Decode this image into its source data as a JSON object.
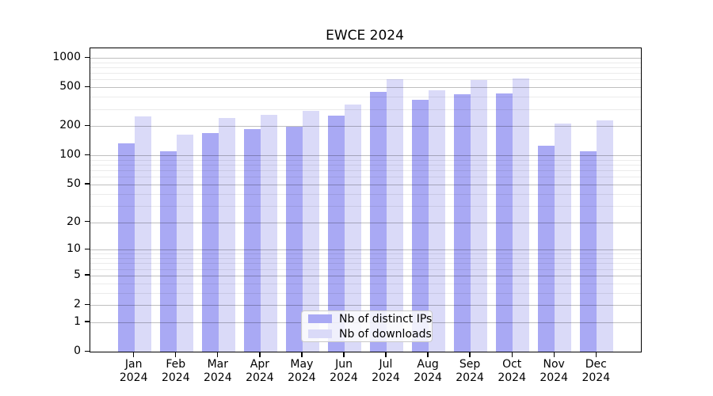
{
  "chart_data": {
    "type": "bar",
    "title": "EWCE 2024",
    "scale": "log1p",
    "grid": true,
    "legend_position": "lower center",
    "ylim": [
      0,
      1250
    ],
    "yticks": [
      0,
      1,
      2,
      5,
      10,
      20,
      50,
      100,
      200,
      500,
      1000
    ],
    "categories": [
      {
        "month": "Jan",
        "year": "2024"
      },
      {
        "month": "Feb",
        "year": "2024"
      },
      {
        "month": "Mar",
        "year": "2024"
      },
      {
        "month": "Apr",
        "year": "2024"
      },
      {
        "month": "May",
        "year": "2024"
      },
      {
        "month": "Jun",
        "year": "2024"
      },
      {
        "month": "Jul",
        "year": "2024"
      },
      {
        "month": "Aug",
        "year": "2024"
      },
      {
        "month": "Sep",
        "year": "2024"
      },
      {
        "month": "Oct",
        "year": "2024"
      },
      {
        "month": "Nov",
        "year": "2024"
      },
      {
        "month": "Dec",
        "year": "2024"
      }
    ],
    "series": [
      {
        "name": "Nb of distinct IPs",
        "color": "#a9a9f4",
        "values": [
          133,
          110,
          170,
          185,
          198,
          254,
          446,
          375,
          425,
          432,
          126,
          111
        ]
      },
      {
        "name": "Nb of downloads",
        "color": "#dadaf8",
        "values": [
          250,
          162,
          240,
          259,
          287,
          331,
          605,
          466,
          590,
          620,
          214,
          228
        ]
      }
    ]
  },
  "colors": {
    "background": "#ffffff",
    "axis": "#000000",
    "grid_major": "rgba(0,0,0,0.25)",
    "grid_minor": "rgba(0,0,0,0.08)",
    "legend_background": "rgba(253,253,253,0.85)",
    "legend_border": "#c9c9c9"
  }
}
